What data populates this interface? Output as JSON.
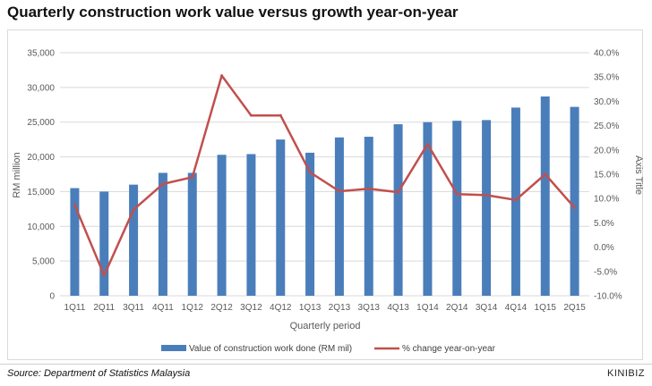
{
  "title": "Quarterly construction work value versus growth year-on-year",
  "source": "Source: Department of Statistics Malaysia",
  "brand": "KINIBIZ",
  "colors": {
    "bar": "#4a7ebb",
    "line": "#c0504d",
    "grid": "#d9d9d9",
    "text": "#595959"
  },
  "chart_data": {
    "type": "bar+line",
    "categories": [
      "1Q11",
      "2Q11",
      "3Q11",
      "4Q11",
      "1Q12",
      "2Q12",
      "3Q12",
      "4Q12",
      "1Q13",
      "2Q13",
      "3Q13",
      "4Q13",
      "1Q14",
      "2Q14",
      "3Q14",
      "4Q14",
      "1Q15",
      "2Q15"
    ],
    "series": [
      {
        "name": "Value of construction work done (RM mil)",
        "type": "bar",
        "axis": "left",
        "values": [
          15500,
          15000,
          16000,
          17700,
          17700,
          20300,
          20400,
          22500,
          20600,
          22800,
          22900,
          24700,
          25000,
          25200,
          25300,
          27100,
          28700,
          27200
        ]
      },
      {
        "name": "% change year-on-year",
        "type": "line",
        "axis": "right",
        "values": [
          8.7,
          -5.8,
          7.7,
          13.0,
          14.4,
          35.3,
          27.1,
          27.1,
          15.4,
          11.5,
          12.0,
          11.3,
          21.2,
          10.9,
          10.7,
          9.7,
          15.0,
          8.1
        ]
      }
    ],
    "xlabel": "Quarterly period",
    "ylabel": "RM million",
    "y2label": "Axis Title",
    "ylim": [
      0,
      35000
    ],
    "yticks": [
      "0",
      "5,000",
      "10,000",
      "15,000",
      "20,000",
      "25,000",
      "30,000",
      "35,000"
    ],
    "y2lim": [
      -10,
      40
    ],
    "y2ticks": [
      "-10.0%",
      "-5.0%",
      "0.0%",
      "5.0%",
      "10.0%",
      "15.0%",
      "20.0%",
      "25.0%",
      "30.0%",
      "35.0%",
      "40.0%"
    ],
    "grid": true,
    "legend": "bottom"
  }
}
